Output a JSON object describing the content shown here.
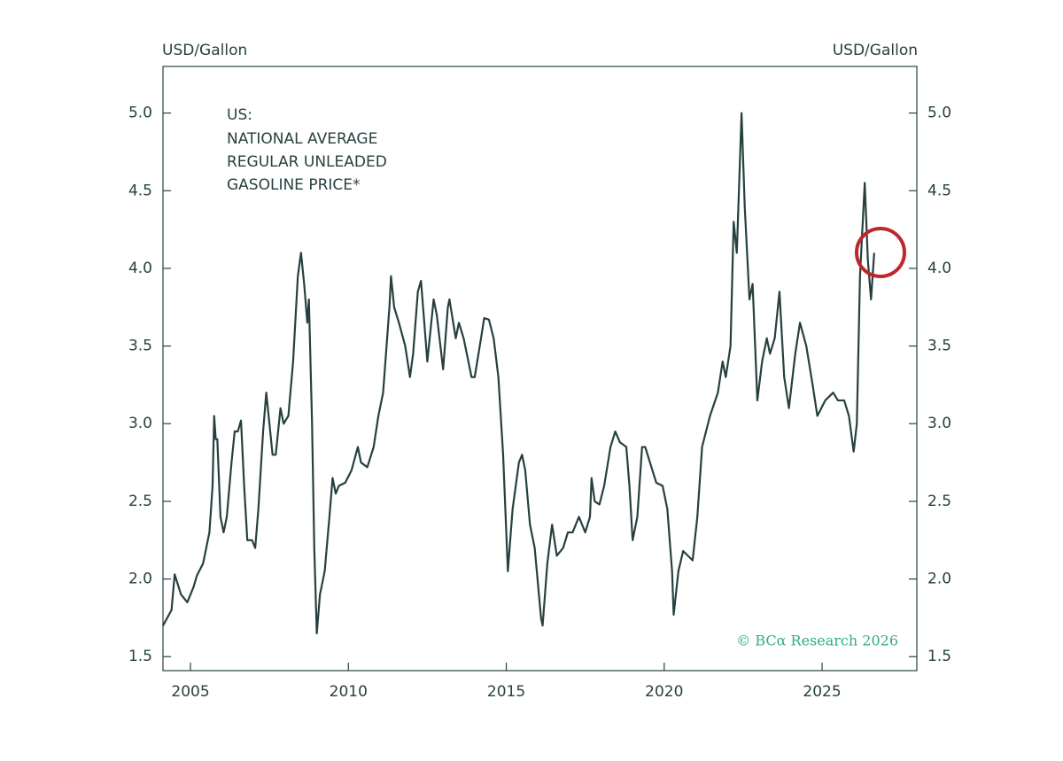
{
  "chart_data": {
    "type": "line",
    "y_label": "USD/Gallon",
    "y2_label": "USD/Gallon",
    "annotation": [
      "US:",
      "NATIONAL AVERAGE",
      "REGULAR UNLEADED",
      "GASOLINE PRICE*"
    ],
    "credit": "© BCα Research 2026",
    "color": "#27403f",
    "xlim": [
      2004.13,
      2028.0
    ],
    "xticks": [
      2005,
      2010,
      2015,
      2020,
      2025
    ],
    "ylim": [
      1.41,
      5.3
    ],
    "yticks": [
      1.5,
      {
        "value": 2,
        "label": "2.0"
      },
      2.5,
      {
        "value": 3,
        "label": "3.0"
      },
      3.5,
      {
        "value": 4,
        "label": "4.0"
      },
      4.5,
      {
        "value": 5,
        "label": "5.0"
      }
    ],
    "y2lim": [
      1.41,
      5.3
    ],
    "y2ticks": [
      1.5,
      {
        "value": 2,
        "label": "2.0"
      },
      2.5,
      {
        "value": 3,
        "label": "3.0"
      },
      3.5,
      {
        "value": 4,
        "label": "4.0"
      },
      4.5,
      {
        "value": 5,
        "label": "5.0"
      }
    ],
    "x": [
      2004.13,
      2004.4,
      2004.5,
      2004.7,
      2004.9,
      2005.1,
      2005.2,
      2005.4,
      2005.5,
      2005.6,
      2005.7,
      2005.75,
      2005.8,
      2005.85,
      2005.95,
      2006.05,
      2006.15,
      2006.3,
      2006.4,
      2006.5,
      2006.6,
      2006.7,
      2006.8,
      2006.95,
      2007.05,
      2007.15,
      2007.3,
      2007.4,
      2007.5,
      2007.6,
      2007.7,
      2007.85,
      2007.95,
      2008.1,
      2008.25,
      2008.4,
      2008.5,
      2008.6,
      2008.7,
      2008.75,
      2008.85,
      2008.92,
      2009.0,
      2009.1,
      2009.25,
      2009.4,
      2009.5,
      2009.6,
      2009.7,
      2009.9,
      2010.1,
      2010.3,
      2010.4,
      2010.6,
      2010.8,
      2010.95,
      2011.1,
      2011.3,
      2011.35,
      2011.45,
      2011.6,
      2011.8,
      2011.95,
      2012.05,
      2012.2,
      2012.3,
      2012.5,
      2012.7,
      2012.8,
      2013.0,
      2013.15,
      2013.2,
      2013.4,
      2013.5,
      2013.65,
      2013.9,
      2014.0,
      2014.2,
      2014.3,
      2014.45,
      2014.6,
      2014.75,
      2014.9,
      2015.05,
      2015.2,
      2015.4,
      2015.5,
      2015.6,
      2015.75,
      2015.9,
      2016.1,
      2016.15,
      2016.3,
      2016.45,
      2016.6,
      2016.8,
      2016.95,
      2017.1,
      2017.3,
      2017.5,
      2017.65,
      2017.7,
      2017.8,
      2017.95,
      2018.1,
      2018.3,
      2018.45,
      2018.6,
      2018.8,
      2018.9,
      2019.0,
      2019.15,
      2019.3,
      2019.4,
      2019.55,
      2019.75,
      2019.95,
      2020.1,
      2020.25,
      2020.3,
      2020.45,
      2020.6,
      2020.9,
      2021.05,
      2021.2,
      2021.45,
      2021.7,
      2021.85,
      2021.95,
      2022.1,
      2022.2,
      2022.3,
      2022.45,
      2022.55,
      2022.7,
      2022.8,
      2022.95,
      2023.1,
      2023.25,
      2023.35,
      2023.5,
      2023.65,
      2023.8,
      2023.95,
      2024.15,
      2024.3,
      2024.5,
      2024.7,
      2024.85,
      2025.1,
      2025.35,
      2025.5,
      2025.7,
      2025.85,
      2026.0,
      2026.1,
      2026.2,
      2026.35,
      2026.45,
      2026.55,
      2026.65
    ],
    "values": [
      1.7,
      1.8,
      2.03,
      1.9,
      1.85,
      1.95,
      2.02,
      2.1,
      2.2,
      2.3,
      2.6,
      3.05,
      2.9,
      2.9,
      2.4,
      2.3,
      2.4,
      2.75,
      2.95,
      2.95,
      3.02,
      2.6,
      2.25,
      2.25,
      2.2,
      2.45,
      2.95,
      3.2,
      3.0,
      2.8,
      2.8,
      3.1,
      3.0,
      3.05,
      3.4,
      3.95,
      4.1,
      3.9,
      3.65,
      3.8,
      3.0,
      2.2,
      1.65,
      1.9,
      2.05,
      2.4,
      2.65,
      2.55,
      2.6,
      2.62,
      2.7,
      2.85,
      2.75,
      2.72,
      2.85,
      3.05,
      3.2,
      3.75,
      3.95,
      3.75,
      3.65,
      3.5,
      3.3,
      3.45,
      3.85,
      3.92,
      3.4,
      3.8,
      3.7,
      3.35,
      3.75,
      3.8,
      3.55,
      3.65,
      3.55,
      3.3,
      3.3,
      3.55,
      3.68,
      3.67,
      3.55,
      3.3,
      2.8,
      2.05,
      2.45,
      2.75,
      2.8,
      2.7,
      2.35,
      2.2,
      1.75,
      1.7,
      2.1,
      2.35,
      2.15,
      2.2,
      2.3,
      2.3,
      2.4,
      2.3,
      2.4,
      2.65,
      2.5,
      2.48,
      2.6,
      2.85,
      2.95,
      2.88,
      2.85,
      2.6,
      2.25,
      2.4,
      2.85,
      2.85,
      2.75,
      2.62,
      2.6,
      2.45,
      2.05,
      1.77,
      2.05,
      2.18,
      2.12,
      2.4,
      2.85,
      3.05,
      3.2,
      3.4,
      3.3,
      3.5,
      4.3,
      4.1,
      5.0,
      4.4,
      3.8,
      3.9,
      3.15,
      3.4,
      3.55,
      3.45,
      3.55,
      3.85,
      3.3,
      3.1,
      3.45,
      3.65,
      3.5,
      3.25,
      3.05,
      3.15,
      3.2,
      3.15,
      3.15,
      3.05,
      2.82,
      3.0,
      3.95,
      4.55,
      4.05,
      3.8,
      4.1
    ]
  }
}
